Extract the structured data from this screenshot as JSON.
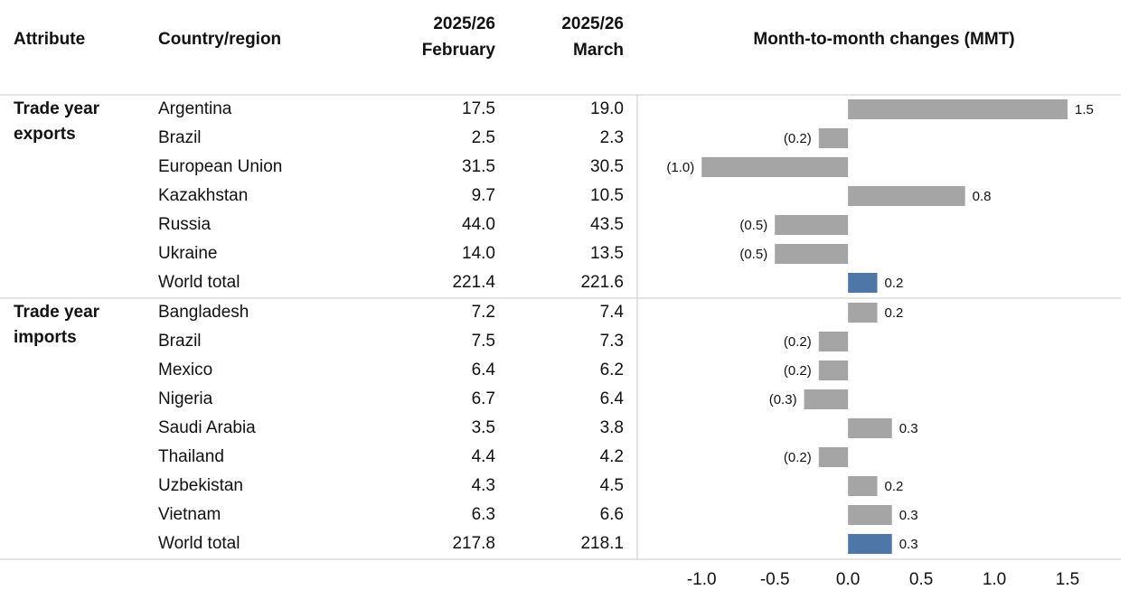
{
  "chart_data": {
    "type": "bar",
    "orientation": "horizontal",
    "title": "Month-to-month changes (MMT)",
    "headers": {
      "attribute": "Attribute",
      "country": "Country/region",
      "february": [
        "2025/26",
        "February"
      ],
      "march": [
        "2025/26",
        "March"
      ]
    },
    "groups": [
      {
        "label": [
          "Trade year",
          "exports"
        ],
        "countries": [
          "Argentina",
          "Brazil",
          "European Union",
          "Kazakhstan",
          "Russia",
          "Ukraine",
          "World total"
        ],
        "february": [
          "17.5",
          "2.5",
          "31.5",
          "9.7",
          "44.0",
          "14.0",
          "221.4"
        ],
        "march": [
          "19.0",
          "2.3",
          "30.5",
          "10.5",
          "43.5",
          "13.5",
          "221.6"
        ],
        "values": [
          1.5,
          -0.2,
          -1.0,
          0.8,
          -0.5,
          -0.5,
          0.2
        ],
        "value_labels": [
          "1.5",
          "(0.2)",
          "(1.0)",
          "0.8",
          "(0.5)",
          "(0.5)",
          "0.2"
        ],
        "colors": [
          "#a5a5a5",
          "#a5a5a5",
          "#a5a5a5",
          "#a5a5a5",
          "#a5a5a5",
          "#a5a5a5",
          "#4e76a6"
        ]
      },
      {
        "label": [
          "Trade year",
          "imports"
        ],
        "countries": [
          "Bangladesh",
          "Brazil",
          "Mexico",
          "Nigeria",
          "Saudi Arabia",
          "Thailand",
          "Uzbekistan",
          "Vietnam",
          "World total"
        ],
        "february": [
          "7.2",
          "7.5",
          "6.4",
          "6.7",
          "3.5",
          "4.4",
          "4.3",
          "6.3",
          "217.8"
        ],
        "march": [
          "7.4",
          "7.3",
          "6.2",
          "6.4",
          "3.8",
          "4.2",
          "4.5",
          "6.6",
          "218.1"
        ],
        "values": [
          0.2,
          -0.2,
          -0.2,
          -0.3,
          0.3,
          -0.2,
          0.2,
          0.3,
          0.3
        ],
        "value_labels": [
          "0.2",
          "(0.2)",
          "(0.2)",
          "(0.3)",
          "0.3",
          "(0.2)",
          "0.2",
          "0.3",
          "0.3"
        ],
        "colors": [
          "#a5a5a5",
          "#a5a5a5",
          "#a5a5a5",
          "#a5a5a5",
          "#a5a5a5",
          "#a5a5a5",
          "#a5a5a5",
          "#a5a5a5",
          "#4e76a6"
        ]
      }
    ],
    "xlim": [
      -1.44,
      1.92
    ],
    "xticks": [
      {
        "value": -1,
        "label": "-1.0"
      },
      -0.5,
      {
        "value": 0,
        "label": "0.0"
      },
      0.5,
      {
        "value": 1,
        "label": "1.0"
      },
      1.5
    ]
  }
}
